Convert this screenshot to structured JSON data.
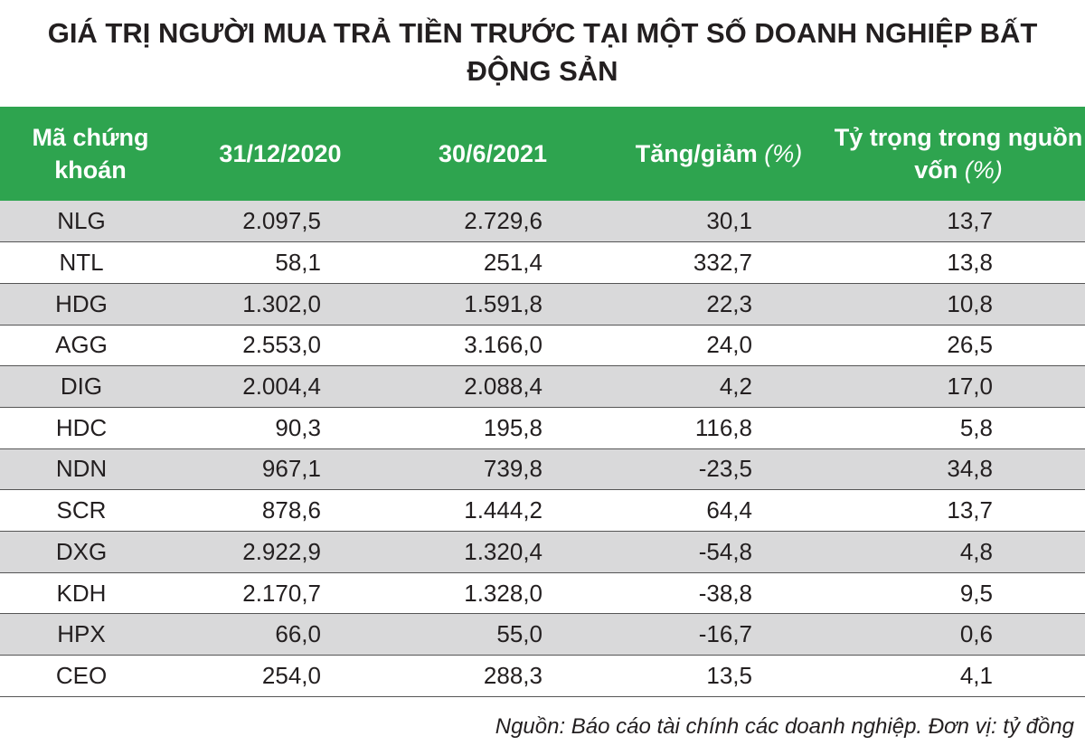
{
  "header": {
    "title": "GIÁ TRỊ NGƯỜI MUA TRẢ TIỀN TRƯỚC TẠI MỘT SỐ DOANH NGHIỆP BẤT ĐỘNG SẢN"
  },
  "table": {
    "columns": [
      {
        "text": "Mã chứng khoán"
      },
      {
        "text": "31/12/2020"
      },
      {
        "text": "30/6/2021"
      },
      {
        "text": "Tăng/giảm",
        "unit": "(%)"
      },
      {
        "text": "Tỷ trọng trong nguồn vốn",
        "unit": "(%)"
      }
    ],
    "rows": [
      [
        "NLG",
        "2.097,5",
        "2.729,6",
        "30,1",
        "13,7"
      ],
      [
        "NTL",
        "58,1",
        "251,4",
        "332,7",
        "13,8"
      ],
      [
        "HDG",
        "1.302,0",
        "1.591,8",
        "22,3",
        "10,8"
      ],
      [
        "AGG",
        "2.553,0",
        "3.166,0",
        "24,0",
        "26,5"
      ],
      [
        "DIG",
        "2.004,4",
        "2.088,4",
        "4,2",
        "17,0"
      ],
      [
        "HDC",
        "90,3",
        "195,8",
        "116,8",
        "5,8"
      ],
      [
        "NDN",
        "967,1",
        "739,8",
        "-23,5",
        "34,8"
      ],
      [
        "SCR",
        "878,6",
        "1.444,2",
        "64,4",
        "13,7"
      ],
      [
        "DXG",
        "2.922,9",
        "1.320,4",
        "-54,8",
        "4,8"
      ],
      [
        "KDH",
        "2.170,7",
        "1.328,0",
        "-38,8",
        "9,5"
      ],
      [
        "HPX",
        "66,0",
        "55,0",
        "-16,7",
        "0,6"
      ],
      [
        "CEO",
        "254,0",
        "288,3",
        "13,5",
        "4,1"
      ]
    ]
  },
  "footer": {
    "note": "Nguồn: Báo cáo tài chính các doanh nghiệp. Đơn vị: tỷ đồng"
  }
}
